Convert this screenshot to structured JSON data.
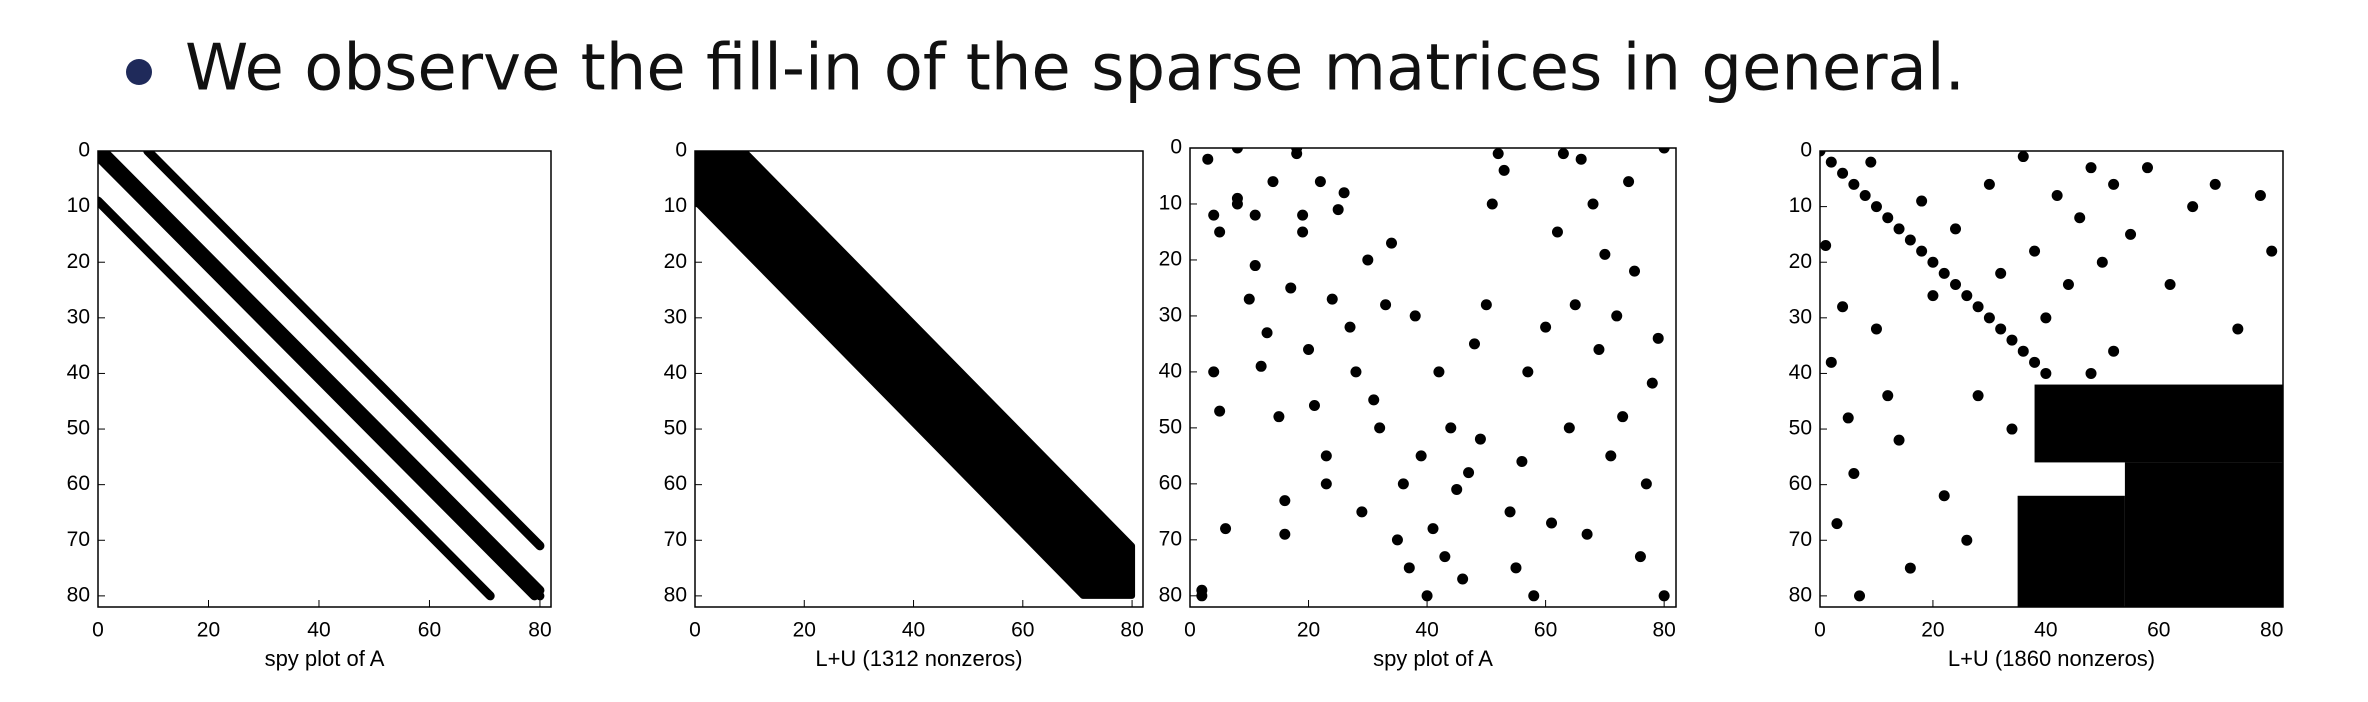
{
  "bullet": "We observe the fill-in of the sparse matrices in general.",
  "chart_data": [
    {
      "type": "spy",
      "xlabel": "spy plot of A",
      "n": 81,
      "diagonals": [
        -9,
        -1,
        0,
        1,
        9
      ],
      "xlim": [
        0,
        82
      ],
      "ylim": [
        0,
        82
      ],
      "xticks": [
        0,
        20,
        40,
        60,
        80
      ],
      "yticks": [
        0,
        10,
        20,
        30,
        40,
        50,
        60,
        70,
        80
      ]
    },
    {
      "type": "band",
      "xlabel": "L+U (1312 nonzeros)",
      "n": 81,
      "band": [
        -9,
        9
      ],
      "xlim": [
        0,
        82
      ],
      "ylim": [
        0,
        82
      ],
      "xticks": [
        0,
        20,
        40,
        60,
        80
      ],
      "yticks": [
        0,
        10,
        20,
        30,
        40,
        50,
        60,
        70,
        80
      ]
    },
    {
      "type": "points",
      "xlabel": "spy plot of A",
      "points": [
        [
          2,
          79
        ],
        [
          2,
          80
        ],
        [
          3,
          2
        ],
        [
          4,
          12
        ],
        [
          5,
          15
        ],
        [
          4,
          40
        ],
        [
          5,
          47
        ],
        [
          6,
          68
        ],
        [
          8,
          0
        ],
        [
          8,
          9
        ],
        [
          8,
          10
        ],
        [
          10,
          27
        ],
        [
          11,
          12
        ],
        [
          11,
          21
        ],
        [
          12,
          39
        ],
        [
          13,
          33
        ],
        [
          14,
          6
        ],
        [
          15,
          48
        ],
        [
          16,
          63
        ],
        [
          16,
          69
        ],
        [
          17,
          25
        ],
        [
          18,
          0
        ],
        [
          18,
          1
        ],
        [
          19,
          12
        ],
        [
          19,
          15
        ],
        [
          20,
          36
        ],
        [
          21,
          46
        ],
        [
          22,
          6
        ],
        [
          23,
          55
        ],
        [
          23,
          60
        ],
        [
          24,
          27
        ],
        [
          25,
          11
        ],
        [
          26,
          8
        ],
        [
          27,
          32
        ],
        [
          28,
          40
        ],
        [
          29,
          65
        ],
        [
          30,
          20
        ],
        [
          31,
          45
        ],
        [
          32,
          50
        ],
        [
          33,
          28
        ],
        [
          34,
          17
        ],
        [
          35,
          70
        ],
        [
          36,
          60
        ],
        [
          37,
          75
        ],
        [
          38,
          30
        ],
        [
          39,
          55
        ],
        [
          40,
          80
        ],
        [
          41,
          68
        ],
        [
          42,
          40
        ],
        [
          43,
          73
        ],
        [
          44,
          50
        ],
        [
          45,
          61
        ],
        [
          46,
          77
        ],
        [
          47,
          58
        ],
        [
          48,
          35
        ],
        [
          49,
          52
        ],
        [
          50,
          28
        ],
        [
          51,
          10
        ],
        [
          52,
          1
        ],
        [
          53,
          4
        ],
        [
          54,
          65
        ],
        [
          55,
          75
        ],
        [
          56,
          56
        ],
        [
          57,
          40
        ],
        [
          58,
          80
        ],
        [
          60,
          32
        ],
        [
          61,
          67
        ],
        [
          62,
          15
        ],
        [
          63,
          1
        ],
        [
          64,
          50
        ],
        [
          65,
          28
        ],
        [
          66,
          2
        ],
        [
          67,
          69
        ],
        [
          68,
          10
        ],
        [
          69,
          36
        ],
        [
          70,
          19
        ],
        [
          71,
          55
        ],
        [
          72,
          30
        ],
        [
          73,
          48
        ],
        [
          74,
          6
        ],
        [
          75,
          22
        ],
        [
          76,
          73
        ],
        [
          77,
          60
        ],
        [
          78,
          42
        ],
        [
          79,
          34
        ],
        [
          80,
          0
        ],
        [
          80,
          80
        ]
      ],
      "xlim": [
        0,
        82
      ],
      "ylim": [
        0,
        82
      ],
      "xticks": [
        0,
        20,
        40,
        60,
        80
      ],
      "yticks": [
        0,
        10,
        20,
        30,
        40,
        50,
        60,
        70,
        80
      ]
    },
    {
      "type": "points",
      "xlabel": "L+U (1860 nonzeros)",
      "points": [
        [
          0,
          0
        ],
        [
          2,
          2
        ],
        [
          4,
          4
        ],
        [
          6,
          6
        ],
        [
          8,
          8
        ],
        [
          10,
          10
        ],
        [
          12,
          12
        ],
        [
          14,
          14
        ],
        [
          16,
          16
        ],
        [
          18,
          18
        ],
        [
          20,
          20
        ],
        [
          22,
          22
        ],
        [
          24,
          24
        ],
        [
          26,
          26
        ],
        [
          28,
          28
        ],
        [
          30,
          30
        ],
        [
          32,
          32
        ],
        [
          34,
          34
        ],
        [
          36,
          36
        ],
        [
          38,
          38
        ],
        [
          40,
          40
        ],
        [
          1,
          17
        ],
        [
          2,
          38
        ],
        [
          3,
          67
        ],
        [
          4,
          28
        ],
        [
          5,
          48
        ],
        [
          6,
          58
        ],
        [
          7,
          80
        ],
        [
          9,
          2
        ],
        [
          10,
          32
        ],
        [
          12,
          44
        ],
        [
          14,
          52
        ],
        [
          16,
          75
        ],
        [
          18,
          9
        ],
        [
          20,
          26
        ],
        [
          22,
          62
        ],
        [
          24,
          14
        ],
        [
          26,
          70
        ],
        [
          28,
          44
        ],
        [
          30,
          6
        ],
        [
          32,
          22
        ],
        [
          34,
          50
        ],
        [
          36,
          1
        ],
        [
          38,
          18
        ],
        [
          40,
          30
        ],
        [
          42,
          8
        ],
        [
          44,
          24
        ],
        [
          46,
          12
        ],
        [
          48,
          3
        ],
        [
          50,
          20
        ],
        [
          52,
          6
        ],
        [
          55,
          15
        ],
        [
          58,
          3
        ],
        [
          62,
          24
        ],
        [
          66,
          10
        ],
        [
          70,
          6
        ],
        [
          74,
          32
        ],
        [
          78,
          8
        ],
        [
          80,
          18
        ],
        [
          45,
          44
        ],
        [
          48,
          40
        ],
        [
          52,
          36
        ]
      ],
      "blocks": [
        [
          54,
          82,
          56,
          82
        ],
        [
          35,
          54,
          62,
          82
        ],
        [
          38,
          82,
          42,
          56
        ]
      ],
      "xlim": [
        0,
        82
      ],
      "ylim": [
        0,
        82
      ],
      "xticks": [
        0,
        20,
        40,
        60,
        80
      ],
      "yticks": [
        0,
        10,
        20,
        30,
        40,
        50,
        60,
        70,
        80
      ]
    }
  ]
}
